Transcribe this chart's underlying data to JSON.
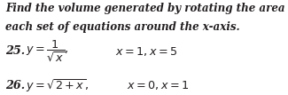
{
  "bg_color": "#ffffff",
  "text_color": "#231f20",
  "title_line1": "Find the volume generated by rotating the area bounded by",
  "title_line2": "each set of equations around the x-axis.",
  "label25": "25.",
  "label26": "26.",
  "eq25": "$y = \\dfrac{1}{\\sqrt{x}},$",
  "rest25": "$x = 1, x = 5$",
  "eq26": "$y = \\sqrt{2 + x},$",
  "rest26": "$x = 0, x = 1$",
  "title_fontsize": 8.6,
  "label_fontsize": 9.2,
  "eq_fontsize": 9.2,
  "fig_width": 3.25,
  "fig_height": 1.07,
  "dpi": 100
}
